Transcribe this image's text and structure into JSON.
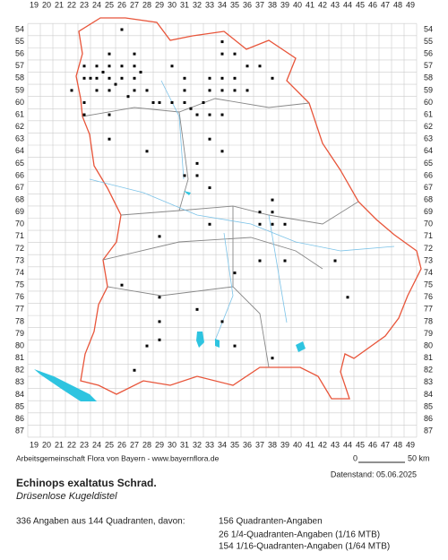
{
  "grid": {
    "columns": [
      "19",
      "20",
      "21",
      "22",
      "23",
      "24",
      "25",
      "26",
      "27",
      "28",
      "29",
      "30",
      "31",
      "32",
      "33",
      "34",
      "35",
      "36",
      "37",
      "38",
      "39",
      "40",
      "41",
      "42",
      "43",
      "44",
      "45",
      "46",
      "47",
      "48",
      "49"
    ],
    "rows": [
      "54",
      "55",
      "56",
      "57",
      "58",
      "59",
      "60",
      "61",
      "62",
      "63",
      "64",
      "65",
      "66",
      "67",
      "68",
      "69",
      "70",
      "71",
      "72",
      "73",
      "74",
      "75",
      "76",
      "77",
      "78",
      "79",
      "80",
      "81",
      "82",
      "83",
      "84",
      "85",
      "86",
      "87"
    ]
  },
  "footer": {
    "credit": "Arbeitsgemeinschaft Flora von Bayern - www.bayernflora.de",
    "scale_start": "0",
    "scale_end": "50 km",
    "date": "Datenstand: 05.06.2025"
  },
  "species": {
    "name": "Echinops exaltatus Schrad.",
    "common_name": "Drüsenlose Kugeldistel"
  },
  "stats": {
    "summary": "336 Angaben aus 144 Quadranten, davon:",
    "lines": [
      "156 Quadranten-Angaben",
      "26 1/4-Quadranten-Angaben (1/16 MTB)",
      "154 1/16-Quadranten-Angaben (1/64 MTB)"
    ]
  }
}
